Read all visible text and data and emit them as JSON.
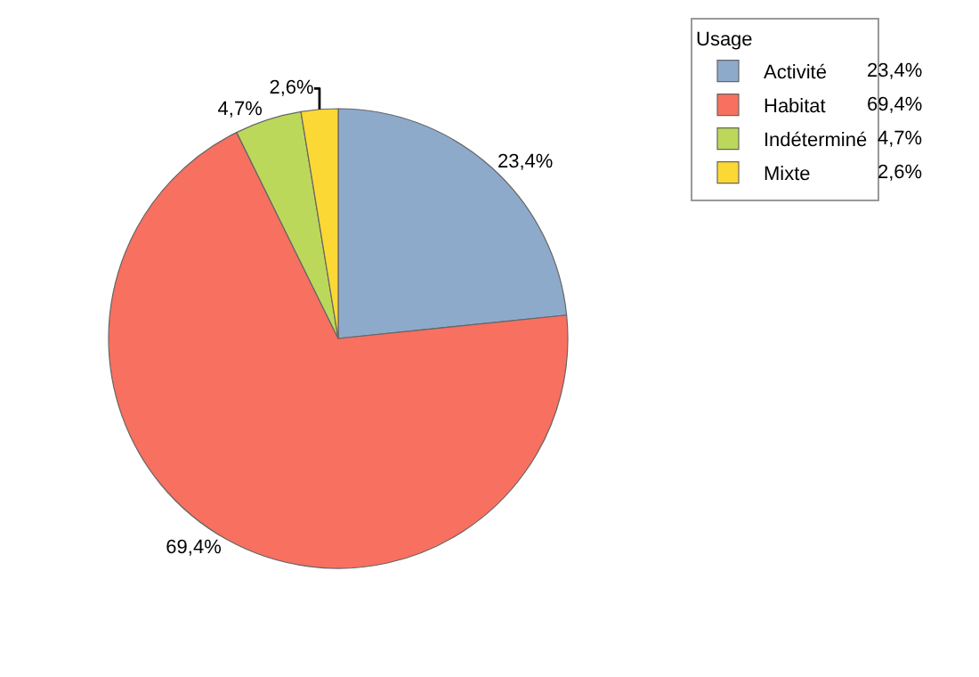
{
  "chart_data": {
    "type": "pie",
    "legend_title": "Usage",
    "legend": "top right",
    "categories": [
      "Activité",
      "Habitat",
      "Indéterminé",
      "Mixte"
    ],
    "values": [
      23.4,
      69.4,
      4.7,
      2.6
    ],
    "colors": [
      "#8eaacb",
      "#f87060",
      "#bcd85a",
      "#fcd835"
    ],
    "value_labels": [
      "23,4%",
      "69,4%",
      "4,7%",
      "2,6%"
    ]
  }
}
